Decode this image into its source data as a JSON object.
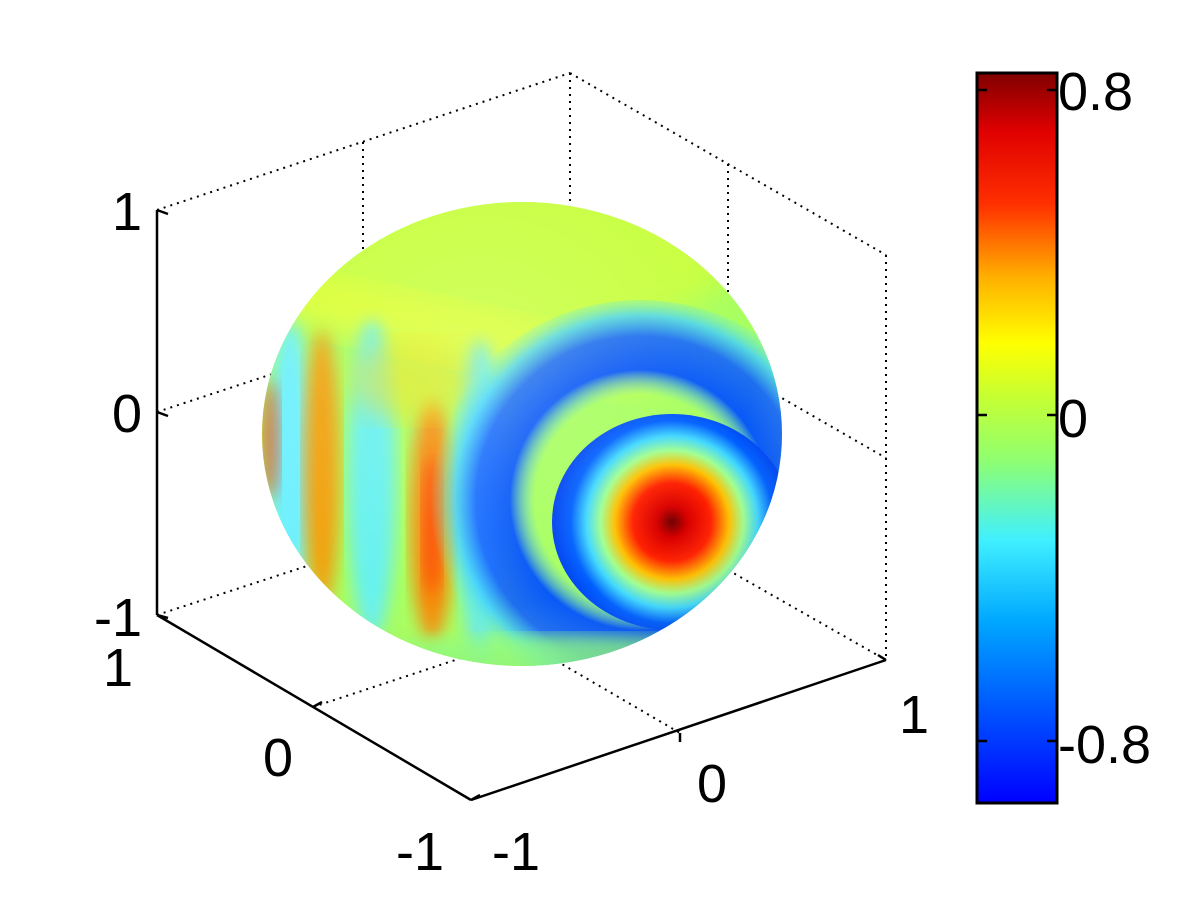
{
  "chart_data": {
    "type": "heatmap",
    "surface": "sphere",
    "colormap": "jet",
    "grid": true,
    "axes": {
      "x": {
        "ticks": [
          -1,
          0,
          1
        ],
        "tick_labels": [
          "-1",
          "0",
          "1"
        ],
        "lim": [
          -1,
          1
        ]
      },
      "y": {
        "ticks": [
          -1,
          0,
          1
        ],
        "tick_labels": [
          "-1",
          "0",
          "1"
        ],
        "lim": [
          -1,
          1
        ]
      },
      "z": {
        "ticks": [
          -1,
          0,
          1
        ],
        "tick_labels": [
          "-1",
          "0",
          "1"
        ],
        "lim": [
          -1,
          1
        ]
      }
    },
    "colorbar": {
      "location": "right",
      "ticks": [
        0.8,
        0,
        -0.8
      ],
      "tick_labels": [
        "0.8",
        "0",
        "-0.8"
      ],
      "range": [
        -0.9,
        0.9
      ],
      "colors": [
        "#000080",
        "#0000ff",
        "#0080ff",
        "#00ffff",
        "#80ff80",
        "#ffff00",
        "#ff8000",
        "#ff0000",
        "#800000"
      ]
    },
    "field_features": [
      {
        "feature": "peak",
        "value": 0.85
      },
      {
        "feature": "ring",
        "value": -0.75
      },
      {
        "feature": "band",
        "value": 0.4
      },
      {
        "feature": "background",
        "value": 0.05
      }
    ]
  }
}
